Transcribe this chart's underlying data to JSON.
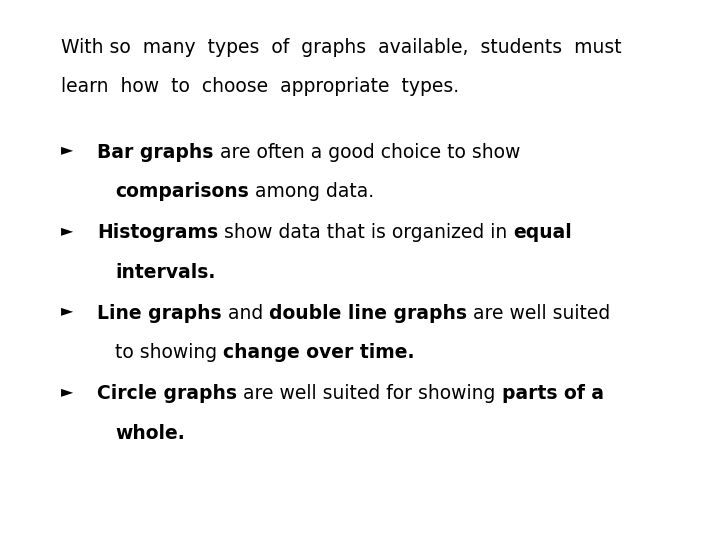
{
  "background_color": "#ffffff",
  "figsize": [
    7.2,
    5.4
  ],
  "dpi": 100,
  "font_size": 13.5,
  "font_family": "DejaVu Sans",
  "text_color": "#000000",
  "intro_line1": "With so  many  types  of  graphs  available,  students  must",
  "intro_line2": "learn  how  to  choose  appropriate  types.",
  "bullet_char": "Ø",
  "bullets": [
    {
      "line1": [
        {
          "text": "Bar graphs",
          "bold": true
        },
        {
          "text": " are often a good choice to show",
          "bold": false
        }
      ],
      "line2": [
        {
          "text": "comparisons",
          "bold": true
        },
        {
          "text": " among data.",
          "bold": false
        }
      ]
    },
    {
      "line1": [
        {
          "text": "Histograms",
          "bold": true
        },
        {
          "text": " show data that is organized in ",
          "bold": false
        },
        {
          "text": "equal",
          "bold": true
        }
      ],
      "line2": [
        {
          "text": "intervals.",
          "bold": true
        }
      ]
    },
    {
      "line1": [
        {
          "text": "Line graphs",
          "bold": true
        },
        {
          "text": " and ",
          "bold": false
        },
        {
          "text": "double line graphs",
          "bold": true
        },
        {
          "text": " are well suited",
          "bold": false
        }
      ],
      "line2": [
        {
          "text": "to showing ",
          "bold": false
        },
        {
          "text": "change over time.",
          "bold": true
        }
      ]
    },
    {
      "line1": [
        {
          "text": "Circle graphs",
          "bold": true
        },
        {
          "text": " are well suited for showing ",
          "bold": false
        },
        {
          "text": "parts of a",
          "bold": true
        }
      ],
      "line2": [
        {
          "text": "whole.",
          "bold": true
        }
      ]
    }
  ]
}
